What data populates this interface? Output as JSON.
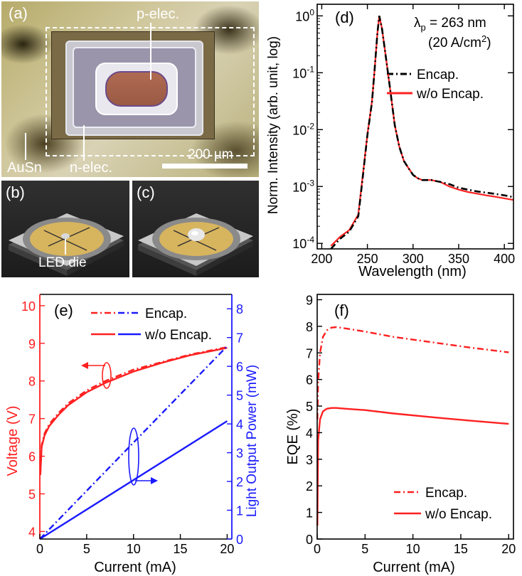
{
  "figure": {
    "panel_a": {
      "label": "(a)",
      "p_elec": "p-elec.",
      "n_elec": "n-elec.",
      "ausn": "AuSn",
      "scale_bar": "200 µm"
    },
    "panel_b": {
      "label": "(b)",
      "led_die": "LED die"
    },
    "panel_c": {
      "label": "(c)"
    }
  },
  "chart_data": [
    {
      "id": "d",
      "type": "line",
      "panel_label": "(d)",
      "annotation_main": "λ",
      "annotation_sub": "p",
      "annotation_rest": " = 263 nm",
      "annotation_2a": "(20 A/cm",
      "annotation_2sup": "2",
      "annotation_2b": ")",
      "xlabel": "Wavelength (nm)",
      "ylabel": "Norm. Intensity (arb. unit, log)",
      "x_scale": "linear",
      "y_scale": "log",
      "xlim": [
        195,
        410
      ],
      "ylim": [
        8e-05,
        1.6
      ],
      "x_ticks": [
        200,
        250,
        300,
        350,
        400
      ],
      "x_tick_labels": [
        "200",
        "250",
        "300",
        "350",
        "400"
      ],
      "y_tick_base": [
        "10",
        "10",
        "10",
        "10",
        "10"
      ],
      "y_tick_exp": [
        "-4",
        "-3",
        "-2",
        "-1",
        "0"
      ],
      "y_ticks": [
        0.0001,
        0.001,
        0.01,
        0.1,
        1
      ],
      "legend_position": "right",
      "series": [
        {
          "name": "Encap.",
          "color": "#000000",
          "style": "dash-dot",
          "x": [
            210,
            220,
            230,
            240,
            245,
            250,
            255,
            258,
            261,
            263,
            266,
            270,
            275,
            280,
            285,
            290,
            295,
            300,
            305,
            310,
            320,
            330,
            340,
            350,
            360,
            370,
            380,
            390,
            400,
            410
          ],
          "y": [
            8e-05,
            0.00012,
            0.00016,
            0.0003,
            0.0015,
            0.008,
            0.03,
            0.12,
            0.5,
            1.0,
            0.6,
            0.2,
            0.05,
            0.012,
            0.005,
            0.0028,
            0.0021,
            0.0016,
            0.0014,
            0.0013,
            0.0013,
            0.0012,
            0.0011,
            0.00095,
            0.00088,
            0.00082,
            0.00078,
            0.00074,
            0.0007,
            0.00065
          ]
        },
        {
          "name": "w/o Encap.",
          "color": "#ff2020",
          "style": "solid",
          "x": [
            210,
            220,
            230,
            240,
            245,
            250,
            255,
            258,
            261,
            263,
            266,
            270,
            275,
            280,
            285,
            290,
            295,
            300,
            305,
            310,
            320,
            330,
            340,
            350,
            360,
            370,
            380,
            390,
            400,
            410
          ],
          "y": [
            9e-05,
            0.00013,
            0.00017,
            0.00032,
            0.0016,
            0.0082,
            0.031,
            0.12,
            0.5,
            1.0,
            0.6,
            0.2,
            0.05,
            0.012,
            0.005,
            0.0028,
            0.0021,
            0.0016,
            0.0014,
            0.0013,
            0.0013,
            0.0012,
            0.001,
            0.00088,
            0.0008,
            0.00075,
            0.0007,
            0.00066,
            0.00062,
            0.00058
          ]
        }
      ]
    },
    {
      "id": "e",
      "type": "line",
      "panel_label": "(e)",
      "xlabel": "Current (mA)",
      "ylabel_left": "Voltage (V)",
      "ylabel_right": "Light Output Power (mW)",
      "xlim": [
        0,
        20.5
      ],
      "ylim_left": [
        3.8,
        10.3
      ],
      "ylim_right": [
        0,
        8.5
      ],
      "x_ticks": [
        0,
        5,
        10,
        15,
        20
      ],
      "x_tick_labels": [
        "0",
        "5",
        "10",
        "15",
        "20"
      ],
      "y_ticks_left": [
        4,
        5,
        6,
        7,
        8,
        9,
        10
      ],
      "y_tick_labels_left": [
        "4",
        "5",
        "6",
        "7",
        "8",
        "9",
        "10"
      ],
      "y_ticks_right": [
        0,
        1,
        2,
        3,
        4,
        5,
        6,
        7,
        8
      ],
      "y_tick_labels_right": [
        "0",
        "1",
        "2",
        "3",
        "4",
        "5",
        "6",
        "7",
        "8"
      ],
      "left_axis_color": "#ff2020",
      "right_axis_color": "#1a1aff",
      "legend_position": "top-right",
      "legend": [
        {
          "name": "Encap.",
          "color_left": "#ff2020",
          "color_right": "#1a1aff",
          "style": "dash-dot"
        },
        {
          "name": "w/o Encap.",
          "color_left": "#ff2020",
          "color_right": "#1a1aff",
          "style": "solid"
        }
      ],
      "series": [
        {
          "axis": "left",
          "color": "#ff2020",
          "style": "dash-dot",
          "x": [
            0.05,
            0.2,
            0.5,
            1,
            2,
            3,
            5,
            7,
            10,
            13,
            16,
            18,
            20
          ],
          "y": [
            5.5,
            6.3,
            6.6,
            6.85,
            7.15,
            7.4,
            7.75,
            8.0,
            8.3,
            8.5,
            8.7,
            8.8,
            8.9
          ]
        },
        {
          "axis": "left",
          "color": "#ff2020",
          "style": "solid",
          "x": [
            0.05,
            0.2,
            0.5,
            1,
            2,
            3,
            5,
            7,
            10,
            13,
            16,
            18,
            20
          ],
          "y": [
            5.5,
            6.25,
            6.55,
            6.8,
            7.1,
            7.35,
            7.7,
            7.95,
            8.25,
            8.48,
            8.68,
            8.78,
            8.88
          ]
        },
        {
          "axis": "right",
          "color": "#1a1aff",
          "style": "dash-dot",
          "x": [
            0,
            20
          ],
          "y": [
            0,
            6.7
          ]
        },
        {
          "axis": "right",
          "color": "#1a1aff",
          "style": "solid",
          "x": [
            0,
            20
          ],
          "y": [
            0,
            4.1
          ]
        }
      ]
    },
    {
      "id": "f",
      "type": "line",
      "panel_label": "(f)",
      "xlabel": "Current (mA)",
      "ylabel": "EQE (%)",
      "xlim": [
        0,
        20.5
      ],
      "ylim": [
        0,
        9.2
      ],
      "x_ticks": [
        0,
        5,
        10,
        15,
        20
      ],
      "x_tick_labels": [
        "0",
        "5",
        "10",
        "15",
        "20"
      ],
      "y_ticks": [
        0,
        1,
        2,
        3,
        4,
        5,
        6,
        7,
        8,
        9
      ],
      "y_tick_labels": [
        "0",
        "1",
        "2",
        "3",
        "4",
        "5",
        "6",
        "7",
        "8",
        "9"
      ],
      "legend_position": "bottom-right",
      "series": [
        {
          "name": "Encap.",
          "color": "#ff2020",
          "style": "dash-dot",
          "x": [
            0.02,
            0.1,
            0.3,
            0.6,
            1.0,
            1.5,
            2.0,
            3.0,
            5.0,
            8.0,
            12.0,
            16.0,
            20.0
          ],
          "y": [
            4.5,
            5.9,
            7.0,
            7.6,
            7.85,
            7.95,
            7.97,
            7.92,
            7.8,
            7.6,
            7.4,
            7.2,
            7.02
          ]
        },
        {
          "name": "w/o Encap.",
          "color": "#ff2020",
          "style": "solid",
          "x": [
            0.02,
            0.1,
            0.3,
            0.6,
            1.0,
            1.5,
            2.0,
            3.0,
            5.0,
            8.0,
            12.0,
            16.0,
            20.0
          ],
          "y": [
            0.5,
            3.7,
            4.5,
            4.8,
            4.9,
            4.93,
            4.93,
            4.9,
            4.85,
            4.72,
            4.58,
            4.45,
            4.33
          ]
        }
      ]
    }
  ]
}
